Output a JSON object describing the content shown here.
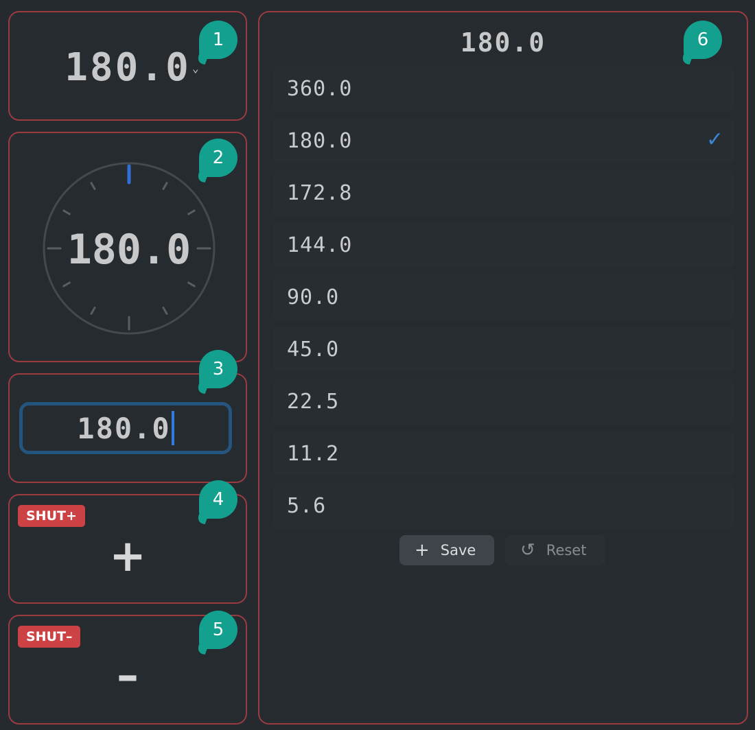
{
  "panel1": {
    "value": "180.0",
    "chevron_icon": "chevron-down-icon",
    "badge": "1"
  },
  "panel2": {
    "value": "180.0",
    "badge": "2",
    "accent": "#2f6fd6"
  },
  "panel3": {
    "value": "180.0",
    "badge": "3"
  },
  "panel4": {
    "tag": "SHUT+",
    "symbol": "+",
    "badge": "4"
  },
  "panel5": {
    "tag": "SHUT–",
    "symbol": "–",
    "badge": "5"
  },
  "panel6": {
    "badge": "6",
    "header": "180.0",
    "items": [
      {
        "label": "360.0",
        "selected": false
      },
      {
        "label": "180.0",
        "selected": true
      },
      {
        "label": "172.8",
        "selected": false
      },
      {
        "label": "144.0",
        "selected": false
      },
      {
        "label": "90.0",
        "selected": false
      },
      {
        "label": "45.0",
        "selected": false
      },
      {
        "label": "22.5",
        "selected": false
      },
      {
        "label": "11.2",
        "selected": false
      },
      {
        "label": "5.6",
        "selected": false
      }
    ],
    "check_glyph": "✓",
    "save_label": "Save",
    "save_icon": "+",
    "reset_label": "Reset",
    "reset_icon": "↺"
  }
}
